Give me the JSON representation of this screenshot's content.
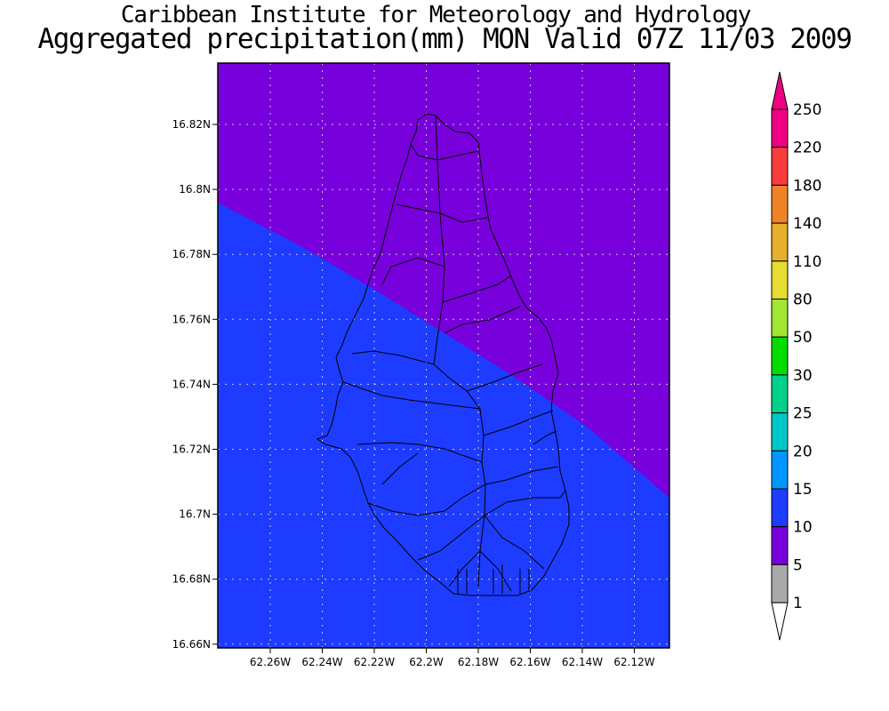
{
  "title_line1": "Caribbean Institute for Meteorology and Hydrology",
  "title_line2": "Aggregated precipitation(mm) MON Valid 07Z 11/03 2009",
  "y_ticks": [
    "16.82N",
    "16.8N",
    "16.78N",
    "16.76N",
    "16.74N",
    "16.72N",
    "16.7N",
    "16.68N",
    "16.66N"
  ],
  "x_ticks": [
    "62.26W",
    "62.24W",
    "62.22W",
    "62.2W",
    "62.18W",
    "62.16W",
    "62.14W",
    "62.12W"
  ],
  "colorbar": {
    "labels": [
      "1",
      "5",
      "10",
      "15",
      "20",
      "25",
      "30",
      "50",
      "80",
      "110",
      "140",
      "180",
      "220",
      "250"
    ],
    "colors": [
      "#aaaaaa",
      "#a000c8",
      "#7800dc",
      "#1e3cff",
      "#0096ff",
      "#00c8c8",
      "#00d28c",
      "#00dc00",
      "#a0e632",
      "#e6dc32",
      "#e6af2d",
      "#f08228",
      "#fa3c3c",
      "#f00082"
    ],
    "over_color": "#f00082",
    "under_color": "#ffffff"
  },
  "fields": {
    "north_color": "#7800dc",
    "south_color": "#1e3cff"
  }
}
